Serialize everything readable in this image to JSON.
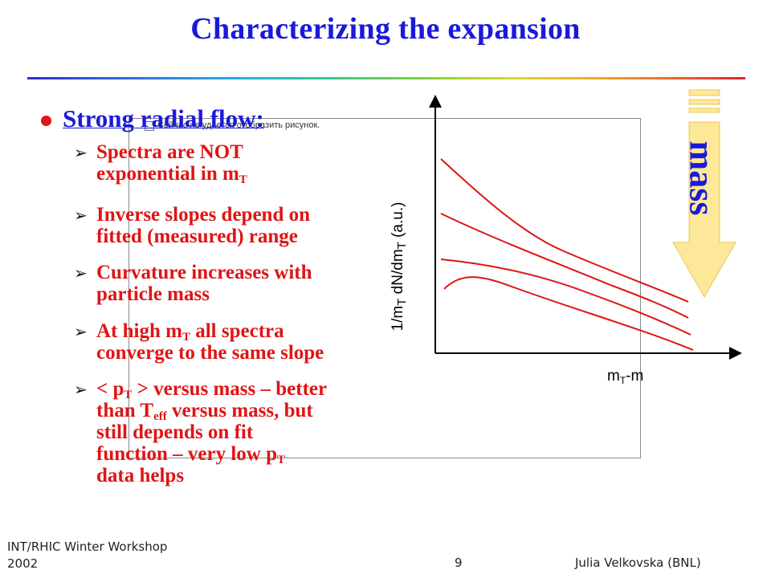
{
  "slide": {
    "title": "Characterizing the expansion",
    "main_bullet": "Strong radial flow:",
    "placeholder_text": "Сейчас не удается отобразить рисунок.",
    "bullets": {
      "b1": {
        "l1": "Spectra are NOT",
        "l2a": "exponential in m",
        "l2sub": "T"
      },
      "b2": {
        "l1": "Inverse slopes depend on",
        "l2": "fitted (measured) range"
      },
      "b3": {
        "l1": "Curvature increases with",
        "l2": "particle mass"
      },
      "b4": {
        "l1a": "At high m",
        "l1sub": "T",
        "l1b": " all spectra",
        "l2": "converge to the same slope"
      },
      "b5": {
        "l1a": "< p",
        "l1sub": "T",
        "l1b": " > versus mass – better",
        "l2a": "than T",
        "l2sub": "eff",
        "l2b": " versus mass, but",
        "l3": "still depends on fit",
        "l4a": "function – very low p",
        "l4sub": "T",
        "l5": "data helps"
      }
    },
    "plot": {
      "ylabel_a": "1/m",
      "ylabel_sub1": "T",
      "ylabel_b": " dN/dm",
      "ylabel_sub2": "T",
      "ylabel_c": " (a.u.)",
      "xlabel_a": "m",
      "xlabel_sub": "T",
      "xlabel_b": "-m",
      "curve_color": "#e01414",
      "arrow_label": "mass",
      "arrow_color": "#fde89a"
    },
    "footer": {
      "event_line1": "INT/RHIC Winter Workshop",
      "event_line2": "2002",
      "page": "9",
      "author": "Julia Velkovska (BNL)"
    }
  }
}
